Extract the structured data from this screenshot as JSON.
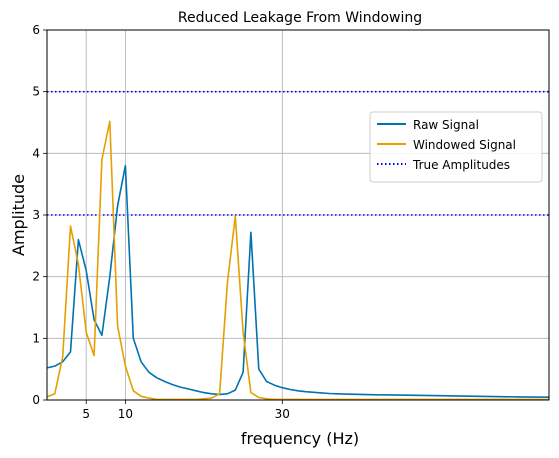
{
  "chart_data": {
    "type": "line",
    "title": "Reduced Leakage From Windowing",
    "xlabel": "frequency (Hz)",
    "ylabel": "Amplitude",
    "xlim": [
      0,
      64
    ],
    "ylim": [
      0,
      6
    ],
    "x_ticks": [
      5,
      10,
      30
    ],
    "y_ticks": [
      0,
      1,
      2,
      3,
      4,
      5,
      6
    ],
    "grid": true,
    "legend_position": "upper right",
    "series": [
      {
        "name": "Raw Signal",
        "color": "#0072b2",
        "style": "solid",
        "x": [
          0,
          1,
          2,
          3,
          4,
          5,
          6,
          7,
          8,
          9,
          10,
          11,
          12,
          13,
          14,
          15,
          16,
          17,
          18,
          19,
          20,
          21,
          22,
          23,
          24,
          25,
          26,
          27,
          28,
          29,
          30,
          31,
          32,
          33,
          34,
          35,
          36,
          37,
          38,
          40,
          42,
          45,
          50,
          55,
          60,
          64
        ],
        "y": [
          0.52,
          0.55,
          0.62,
          0.78,
          2.6,
          2.1,
          1.3,
          1.05,
          2.0,
          3.15,
          3.8,
          1.0,
          0.62,
          0.45,
          0.36,
          0.3,
          0.25,
          0.21,
          0.18,
          0.15,
          0.12,
          0.1,
          0.09,
          0.1,
          0.16,
          0.45,
          2.72,
          0.5,
          0.3,
          0.24,
          0.2,
          0.17,
          0.15,
          0.135,
          0.125,
          0.115,
          0.105,
          0.1,
          0.095,
          0.09,
          0.085,
          0.08,
          0.07,
          0.06,
          0.05,
          0.045
        ]
      },
      {
        "name": "Windowed Signal",
        "color": "#e69f00",
        "style": "solid",
        "x": [
          0,
          1,
          2,
          3,
          4,
          5,
          6,
          7,
          8,
          9,
          10,
          11,
          12,
          13,
          14,
          15,
          16,
          17,
          18,
          19,
          20,
          21,
          22,
          23,
          24,
          25,
          26,
          27,
          28,
          29,
          30,
          31,
          32,
          33,
          34,
          36,
          40,
          50,
          64
        ],
        "y": [
          0.05,
          0.1,
          0.7,
          2.82,
          2.2,
          1.1,
          0.72,
          3.9,
          4.52,
          1.2,
          0.55,
          0.15,
          0.06,
          0.03,
          0.01,
          0.01,
          0.01,
          0.01,
          0.01,
          0.01,
          0.02,
          0.03,
          0.1,
          1.9,
          2.98,
          1.1,
          0.12,
          0.04,
          0.02,
          0.01,
          0.01,
          0.01,
          0.01,
          0.01,
          0.01,
          0.01,
          0.01,
          0.01,
          0.01
        ]
      }
    ],
    "hlines": {
      "name": "True Amplitudes",
      "color": "#0000ff",
      "style": "dotted",
      "values": [
        3,
        5
      ]
    }
  }
}
